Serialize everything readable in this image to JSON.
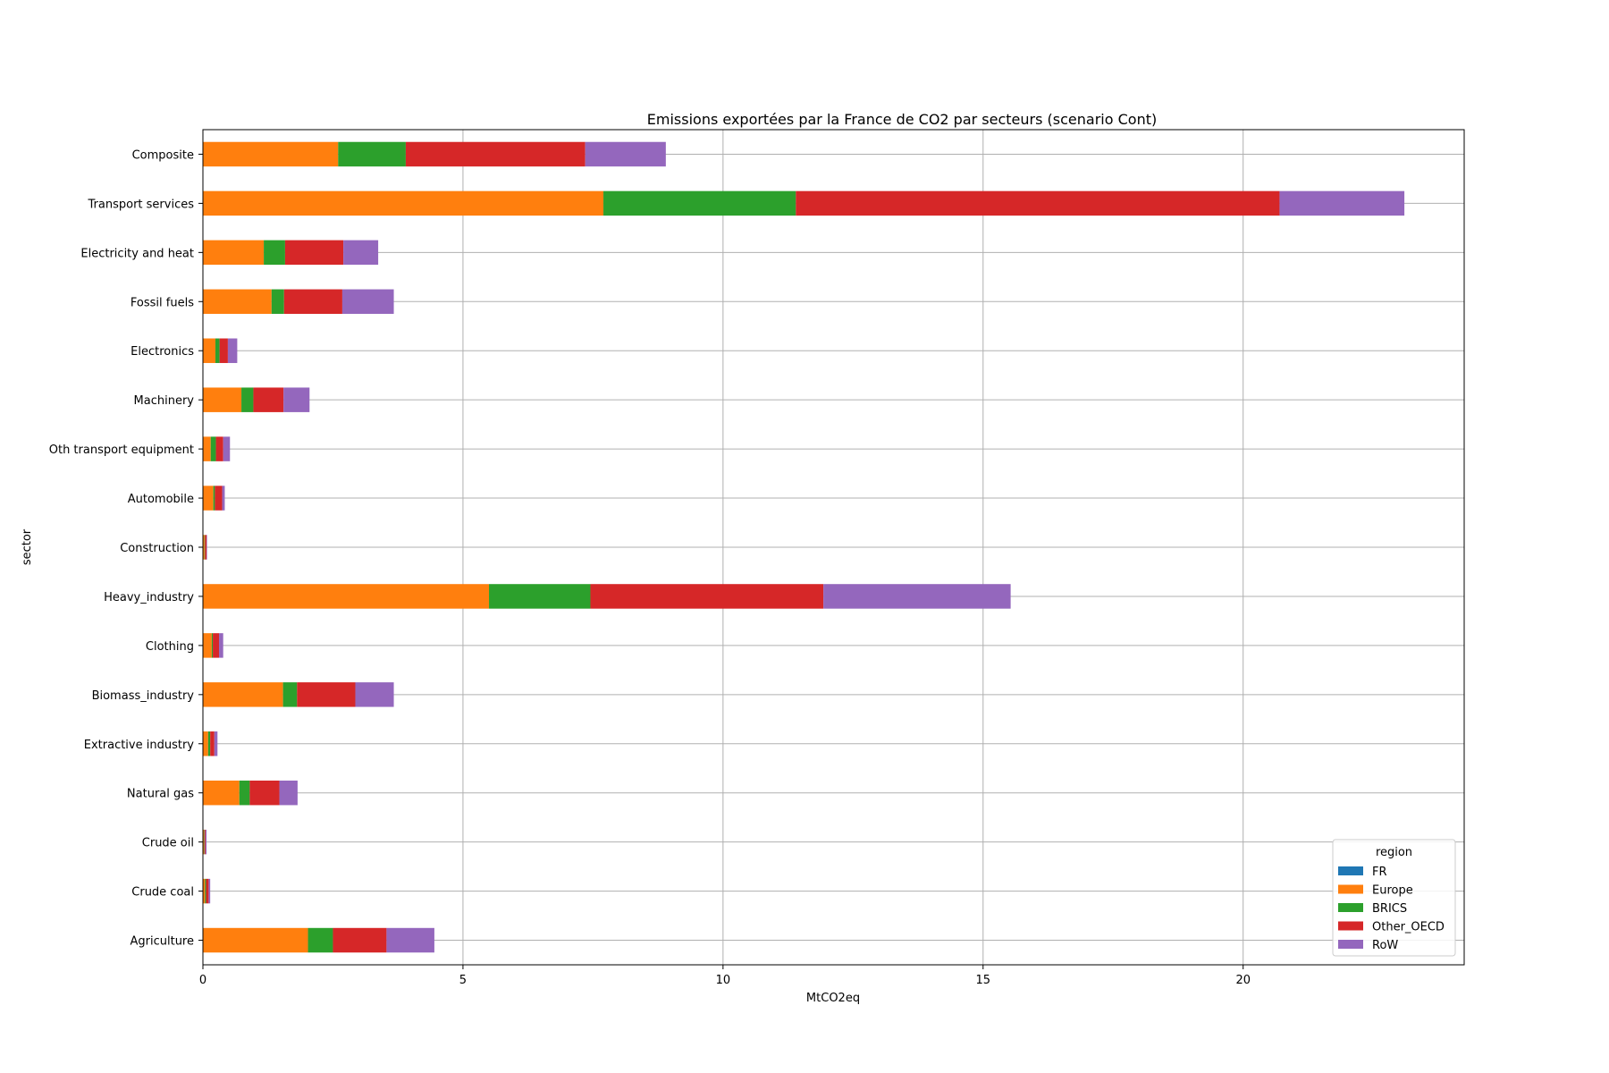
{
  "chart_data": {
    "type": "bar",
    "orientation": "horizontal",
    "stacked": true,
    "title": "Emissions exportées par la France de CO2 par secteurs (scenario Cont)",
    "xlabel": "MtCO2eq",
    "ylabel": "sector",
    "xlim": [
      0,
      24.25
    ],
    "xticks": [
      0,
      5,
      10,
      15,
      20
    ],
    "grid": true,
    "legend": {
      "title": "region",
      "placement": "lower-right"
    },
    "categories": [
      "Composite",
      "Transport services",
      "Electricity and heat",
      "Fossil fuels",
      "Electronics",
      "Machinery",
      "Oth transport equipment",
      "Automobile",
      "Construction",
      "Heavy_industry",
      "Clothing",
      "Biomass_industry",
      "Extractive industry",
      "Natural gas",
      "Crude oil",
      "Crude coal",
      "Agriculture"
    ],
    "series": [
      {
        "name": "FR",
        "color": "#1f77b4",
        "values": [
          0,
          0,
          0,
          0,
          0,
          0,
          0,
          0,
          0,
          0,
          0,
          0,
          0,
          0,
          0,
          0,
          0
        ]
      },
      {
        "name": "Europe",
        "color": "#ff7f0e",
        "values": [
          2.6,
          7.7,
          1.17,
          1.32,
          0.24,
          0.74,
          0.15,
          0.2,
          0.03,
          5.5,
          0.17,
          1.54,
          0.1,
          0.7,
          0.02,
          0.04,
          2.02
        ]
      },
      {
        "name": "BRICS",
        "color": "#2ca02c",
        "values": [
          1.3,
          3.7,
          0.41,
          0.24,
          0.08,
          0.23,
          0.1,
          0.03,
          0.01,
          1.95,
          0.02,
          0.27,
          0.04,
          0.2,
          0.01,
          0.02,
          0.48
        ]
      },
      {
        "name": "Other_OECD",
        "color": "#d62728",
        "values": [
          3.45,
          9.3,
          1.12,
          1.12,
          0.16,
          0.58,
          0.14,
          0.14,
          0.03,
          4.48,
          0.12,
          1.12,
          0.08,
          0.57,
          0.02,
          0.05,
          1.03
        ]
      },
      {
        "name": "RoW",
        "color": "#9467bd",
        "values": [
          1.55,
          2.4,
          0.67,
          0.99,
          0.18,
          0.5,
          0.13,
          0.05,
          0.01,
          3.6,
          0.08,
          0.74,
          0.06,
          0.35,
          0.02,
          0.03,
          0.92
        ]
      }
    ]
  }
}
